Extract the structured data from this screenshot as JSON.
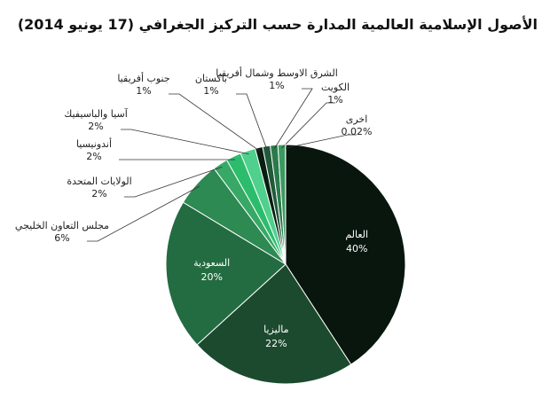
{
  "chart_data": {
    "type": "pie",
    "title": "الأصول الإسلامية العالمية المدارة حسب التركيز الجغرافي (17 يونيو 2014)",
    "categories": [
      "العالم",
      "ماليزيا",
      "السعودية",
      "مجلس التعاون الخليجي",
      "الولايات المتحدة",
      "أندونيسيا",
      "آسيا والباسيفيك",
      "جنوب أفريقيا",
      "باكستان",
      "الشرق الاوسط وشمال أفريقيا",
      "الكويت",
      "اخرى"
    ],
    "values": [
      40,
      22,
      20,
      6,
      2,
      2,
      2,
      1,
      1,
      1,
      1,
      0.02
    ],
    "value_labels": [
      "40%",
      "22%",
      "20%",
      "6%",
      "2%",
      "2%",
      "2%",
      "1%",
      "1%",
      "1%",
      "1%",
      "0.02%"
    ],
    "colors": [
      "#08160d",
      "#1c4a2f",
      "#236b41",
      "#2c8a52",
      "#37a866",
      "#2bbd6c",
      "#4fd08c",
      "#0a1d12",
      "#1f5a39",
      "#2b7a4b",
      "#3a9a5f",
      "#5cc484"
    ]
  }
}
